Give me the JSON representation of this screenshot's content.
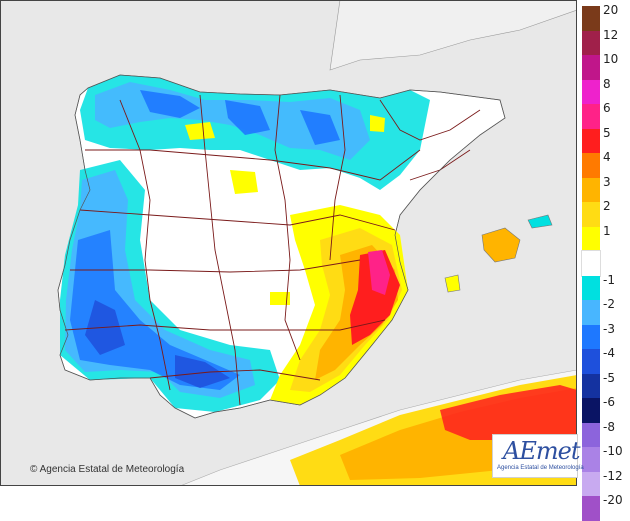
{
  "credit": {
    "symbol": "©",
    "text": "Agencia Estatal de Meteorología"
  },
  "logo": {
    "wordmark": "AEmet",
    "subtitle": "Agencia Estatal de Meteorología"
  },
  "legend": {
    "upper": [
      {
        "label": "20",
        "color": "#7a3a1a"
      },
      {
        "label": "12",
        "color": "#a0204a"
      },
      {
        "label": "10",
        "color": "#c0168a"
      },
      {
        "label": "8",
        "color": "#ee22cc"
      },
      {
        "label": "6",
        "color": "#ff2288"
      },
      {
        "label": "5",
        "color": "#ff1e1e"
      },
      {
        "label": "4",
        "color": "#ff7a00"
      },
      {
        "label": "3",
        "color": "#ffb400"
      },
      {
        "label": "2",
        "color": "#ffdc14"
      },
      {
        "label": "1",
        "color": "#ffff00"
      }
    ],
    "neutral": {
      "color": "#ffffff"
    },
    "lower": [
      {
        "label": "-1",
        "color": "#00e0e0"
      },
      {
        "label": "-2",
        "color": "#48b6ff"
      },
      {
        "label": "-3",
        "color": "#1e78ff"
      },
      {
        "label": "-4",
        "color": "#1e50dc"
      },
      {
        "label": "-5",
        "color": "#1432a0"
      },
      {
        "label": "-6",
        "color": "#0a1464"
      },
      {
        "label": "-8",
        "color": "#8c64dc"
      },
      {
        "label": "-10",
        "color": "#aa82e6"
      },
      {
        "label": "-12",
        "color": "#c8aaf0"
      },
      {
        "label": "-20",
        "color": "#a050c8"
      }
    ]
  }
}
